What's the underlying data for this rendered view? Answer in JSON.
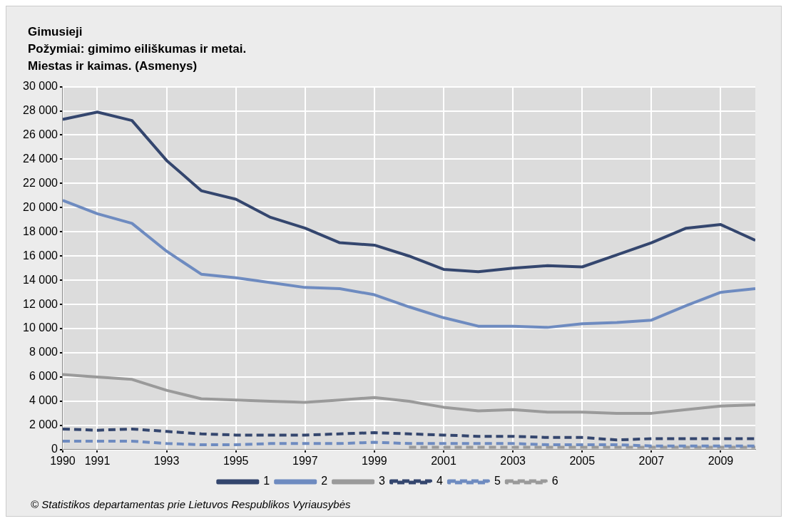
{
  "chart_data": {
    "type": "line",
    "title": "Gimusieji",
    "subtitle": "Požymiai: gimimo eiliškumas ir metai.\nMiestas ir kaimas. (Asmenys)",
    "x": [
      1990,
      1991,
      1992,
      1993,
      1994,
      1995,
      1996,
      1997,
      1998,
      1999,
      2000,
      2001,
      2002,
      2003,
      2004,
      2005,
      2006,
      2007,
      2008,
      2009,
      2010
    ],
    "series": [
      {
        "name": "1",
        "color": "#34466e",
        "line_style": "solid",
        "values": [
          27300,
          27900,
          27200,
          23900,
          21400,
          20700,
          19200,
          18300,
          17100,
          16900,
          16000,
          14900,
          14700,
          15000,
          15200,
          15100,
          16100,
          17100,
          18300,
          18600,
          17300
        ]
      },
      {
        "name": "2",
        "color": "#6e8bc0",
        "line_style": "solid",
        "values": [
          20600,
          19500,
          18700,
          16400,
          14500,
          14200,
          13800,
          13400,
          13300,
          12800,
          11800,
          10900,
          10200,
          10200,
          10100,
          10400,
          10500,
          10700,
          11900,
          13000,
          13300
        ]
      },
      {
        "name": "3",
        "color": "#9a9a9a",
        "line_style": "solid",
        "values": [
          6200,
          6000,
          5800,
          4900,
          4200,
          4100,
          4000,
          3900,
          4100,
          4300,
          4000,
          3500,
          3200,
          3300,
          3100,
          3100,
          3000,
          3000,
          3300,
          3600,
          3700
        ]
      },
      {
        "name": "4",
        "color": "#34466e",
        "line_style": "dashed",
        "values": [
          1700,
          1600,
          1700,
          1500,
          1300,
          1200,
          1200,
          1200,
          1300,
          1400,
          1300,
          1200,
          1100,
          1100,
          1000,
          1000,
          800,
          900,
          900,
          900,
          900
        ]
      },
      {
        "name": "5",
        "color": "#6e8bc0",
        "line_style": "dashed",
        "values": [
          700,
          700,
          700,
          500,
          400,
          400,
          500,
          500,
          500,
          600,
          500,
          500,
          500,
          500,
          400,
          400,
          400,
          300,
          300,
          300,
          300
        ]
      },
      {
        "name": "6",
        "color": "#9a9a9a",
        "line_style": "dashed",
        "values": [
          null,
          null,
          null,
          null,
          null,
          null,
          null,
          null,
          null,
          null,
          200,
          200,
          200,
          200,
          200,
          200,
          200,
          200,
          200,
          200,
          200
        ]
      }
    ],
    "xlim": [
      1990,
      2010
    ],
    "xticks": [
      1990,
      1991,
      1993,
      1995,
      1997,
      1999,
      2001,
      2003,
      2005,
      2007,
      2009
    ],
    "ylim": [
      0,
      30000
    ],
    "yticks": [
      0,
      2000,
      4000,
      6000,
      8000,
      10000,
      12000,
      14000,
      16000,
      18000,
      20000,
      22000,
      24000,
      26000,
      28000,
      30000
    ],
    "grid": true,
    "legend": "bottom",
    "marker": "none",
    "annotations": [
      "© Statistikos departamentas prie Lietuvos Respublikos Vyriausybės"
    ]
  }
}
